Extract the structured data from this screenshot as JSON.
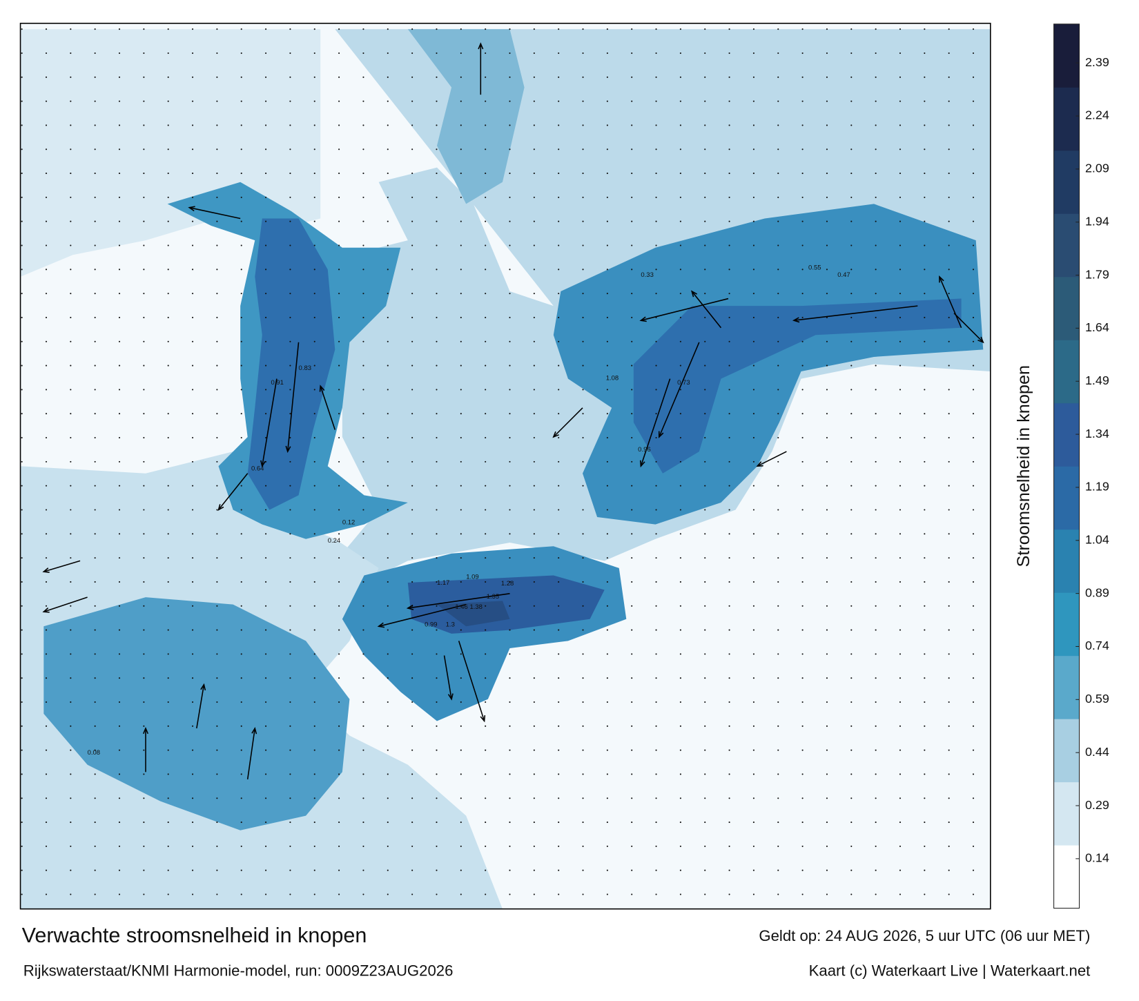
{
  "map": {
    "title": "Verwachte stroomsnelheid in knopen",
    "subtitle": "Rijkswaterstaat/KNMI Harmonie-model, run: 0009Z23AUG2026",
    "valid_time": "Geldt op: 24 AUG 2026, 5 uur UTC (06 uur MET)",
    "credit": "Kaart (c) Waterkaart Live | Waterkaart.net",
    "colorbar": {
      "label": "Stroomsnelheid in knopen",
      "lim": [
        0,
        2.5
      ],
      "ticks": [
        0.14,
        0.29,
        0.44,
        0.59,
        0.74,
        0.89,
        1.04,
        1.19,
        1.34,
        1.49,
        1.64,
        1.79,
        1.94,
        2.09,
        2.24,
        2.39
      ],
      "colors": [
        "#ffffff",
        "#d4e7f1",
        "#a8cfe2",
        "#5aa9cb",
        "#2f96be",
        "#2a82b0",
        "#2b6aa6",
        "#2d5b9b",
        "#2c6a88",
        "#2c5b78",
        "#2a4c72",
        "#203b63",
        "#1c2b4f",
        "#191d3a"
      ]
    },
    "labels": [
      "1.46",
      "1.38",
      "1.35",
      "1.28",
      "1.09",
      "1.17",
      "0.99",
      "1.3",
      "0.91",
      "0.83",
      "1.08",
      "0.96",
      "0.73",
      "0.64",
      "0.55",
      "0.47",
      "0.33",
      "0.24",
      "0.12",
      "0.08"
    ]
  }
}
